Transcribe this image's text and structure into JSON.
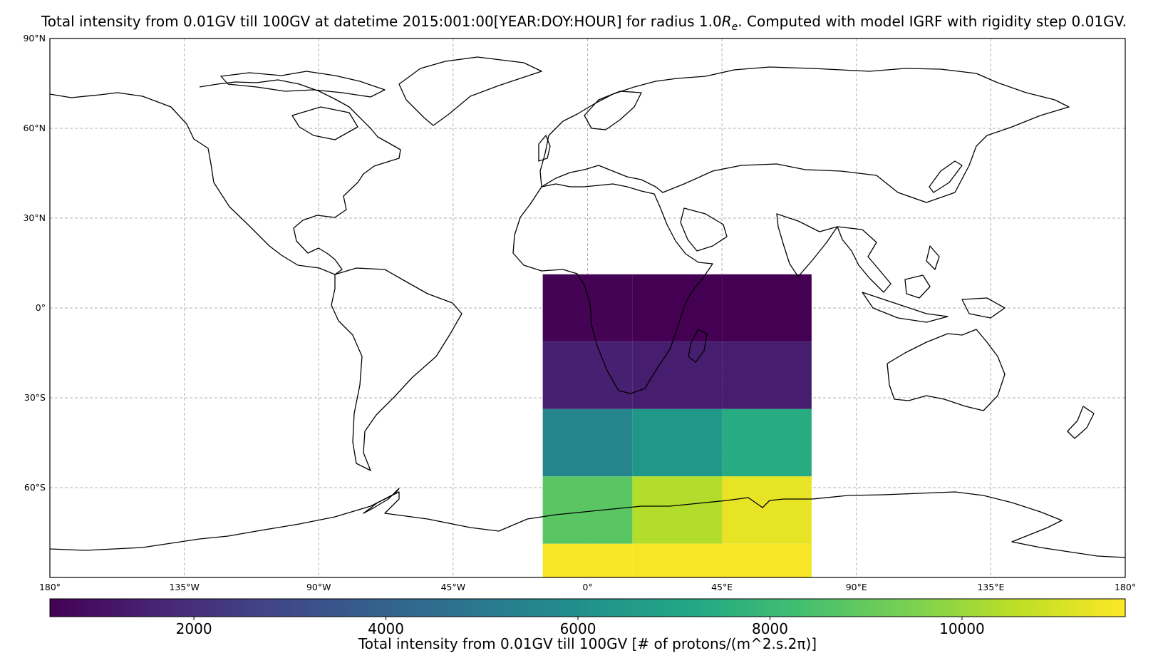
{
  "title": {
    "prefix": "Total intensity from 0.01GV till 100GV at datetime 2015:001:00[YEAR:DOY:HOUR] for radius 1.0",
    "r_symbol": "R",
    "r_sub": "e",
    "suffix": ". Computed with model IGRF with rigidity step 0.01GV."
  },
  "map": {
    "projection": "PlateCarree",
    "extent": {
      "lon": [
        -180,
        180
      ],
      "lat": [
        -90,
        90
      ]
    },
    "gridlines": true,
    "grid_color": "#b0b0b0",
    "coastline_color": "#000000",
    "lat_ticks": [
      {
        "value": 90,
        "label": "90°N"
      },
      {
        "value": 60,
        "label": "60°N"
      },
      {
        "value": 30,
        "label": "30°N"
      },
      {
        "value": 0,
        "label": "0°"
      },
      {
        "value": -30,
        "label": "30°S"
      },
      {
        "value": -60,
        "label": "60°S"
      }
    ],
    "lon_ticks": [
      {
        "value": -180,
        "label": "180°"
      },
      {
        "value": -135,
        "label": "135°W"
      },
      {
        "value": -90,
        "label": "90°W"
      },
      {
        "value": -45,
        "label": "45°W"
      },
      {
        "value": 0,
        "label": "0°"
      },
      {
        "value": 45,
        "label": "45°E"
      },
      {
        "value": 90,
        "label": "90°E"
      },
      {
        "value": 135,
        "label": "135°E"
      },
      {
        "value": 180,
        "label": "180°"
      }
    ]
  },
  "chart_data": {
    "type": "heatmap",
    "lon_edges": [
      -15,
      15,
      45,
      75
    ],
    "lat_edges": [
      11.25,
      -11.25,
      -33.75,
      -56.25,
      -78.75,
      -90
    ],
    "values": [
      [
        550,
        500,
        500
      ],
      [
        1500,
        1400,
        1400
      ],
      [
        5500,
        6400,
        7400
      ],
      [
        8800,
        10400,
        11300
      ],
      [
        11600,
        11600,
        11600
      ]
    ],
    "colormap": "viridis",
    "vmin": 500,
    "vmax": 11700,
    "colorbar": {
      "ticks": [
        2000,
        4000,
        6000,
        8000,
        10000
      ],
      "label": "Total intensity from 0.01GV till 100GV [# of protons/(m^2.s.2π)]"
    }
  }
}
